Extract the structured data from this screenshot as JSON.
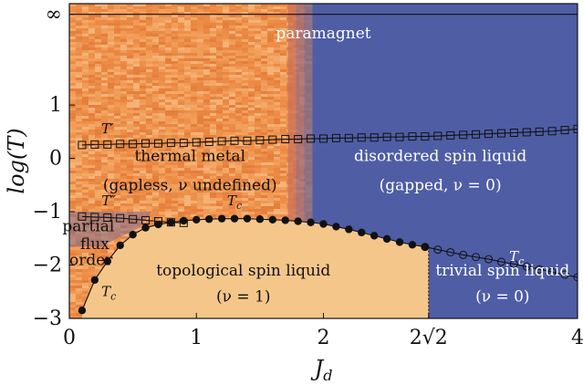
{
  "chart_data": {
    "type": "line",
    "xlabel": "J_d",
    "ylabel": "log(T)",
    "xlim": [
      0,
      4
    ],
    "ylim": [
      -3,
      2.9
    ],
    "x_ticks": [
      {
        "value": 0,
        "label": "0"
      },
      {
        "value": 1,
        "label": "1"
      },
      {
        "value": 2,
        "label": "2"
      },
      {
        "value": 2.828,
        "label": "2√2"
      },
      {
        "value": 4,
        "label": "4"
      }
    ],
    "y_ticks": [
      {
        "value": -3,
        "label": "−3"
      },
      {
        "value": -2,
        "label": "−2"
      },
      {
        "value": -1,
        "label": "−1"
      },
      {
        "value": 0,
        "label": "0"
      },
      {
        "value": 1,
        "label": "1"
      },
      {
        "value": 2.7,
        "label": "∞"
      }
    ],
    "colors": {
      "thermal_metal": "#ee8a45",
      "thermal_metal_light": "#f3b27a",
      "spin_liquid_blue": "#4f5da5",
      "topological": "#f5c68a",
      "curve": "#111111"
    },
    "infinity_line_y": 2.7,
    "regions": [
      {
        "name": "paramagnet",
        "label": "paramagnet",
        "x": 2.0,
        "y": 2.25
      },
      {
        "name": "thermal-metal",
        "label": "thermal metal",
        "x": 0.95,
        "y": -0.05
      },
      {
        "name": "thermal-metal-sub",
        "label": "(gapless, ν undefined)",
        "x": 0.95,
        "y": -0.6
      },
      {
        "name": "disordered-spin-liquid",
        "label": "disordered spin liquid",
        "x": 2.92,
        "y": -0.05
      },
      {
        "name": "disordered-spin-liquid-sub",
        "label": "(gapped, ν = 0)",
        "x": 2.92,
        "y": -0.6
      },
      {
        "name": "topological-spin-liquid",
        "label": "topological spin liquid",
        "x": 1.37,
        "y": -2.2
      },
      {
        "name": "topological-spin-liquid-sub",
        "label": "(ν = 1)",
        "x": 1.37,
        "y": -2.68
      },
      {
        "name": "trivial-spin-liquid",
        "label": "trivial spin liquid",
        "x": 3.41,
        "y": -2.2
      },
      {
        "name": "trivial-spin-liquid-sub",
        "label": "(ν = 0)",
        "x": 3.41,
        "y": -2.68
      },
      {
        "name": "partial-flux-order-1",
        "label": "partial",
        "x": 0.15,
        "y": -1.37
      },
      {
        "name": "partial-flux-order-2",
        "label": "flux",
        "x": 0.2,
        "y": -1.7
      },
      {
        "name": "partial-flux-order-3",
        "label": "order",
        "x": 0.17,
        "y": -2.0
      }
    ],
    "curve_labels": [
      {
        "name": "T-prime",
        "label": "T′",
        "x": 0.3,
        "y": 0.47
      },
      {
        "name": "T-double-prime",
        "label": "T″",
        "x": 0.31,
        "y": -0.88
      },
      {
        "name": "Tc-top",
        "label": "Tc",
        "x": 1.3,
        "y": -0.88
      },
      {
        "name": "Tc-left",
        "label": "Tc",
        "x": 0.31,
        "y": -2.58
      },
      {
        "name": "Tc-right",
        "label": "Tc",
        "x": 3.52,
        "y": -1.92
      }
    ],
    "series": [
      {
        "name": "T'",
        "marker": "square",
        "x": [
          0.1,
          0.2,
          0.3,
          0.4,
          0.5,
          0.6,
          0.7,
          0.8,
          0.9,
          1.0,
          1.1,
          1.2,
          1.3,
          1.4,
          1.5,
          1.6,
          1.7,
          1.8,
          1.9,
          2.0,
          2.1,
          2.2,
          2.3,
          2.4,
          2.5,
          2.6,
          2.7,
          2.8,
          2.9,
          3.0,
          3.1,
          3.2,
          3.3,
          3.4,
          3.5,
          3.6,
          3.7,
          3.8,
          3.9,
          4.0
        ],
        "y": [
          0.25,
          0.26,
          0.26,
          0.27,
          0.27,
          0.28,
          0.28,
          0.29,
          0.29,
          0.3,
          0.31,
          0.32,
          0.33,
          0.33,
          0.34,
          0.35,
          0.36,
          0.36,
          0.37,
          0.37,
          0.38,
          0.38,
          0.39,
          0.39,
          0.4,
          0.4,
          0.41,
          0.41,
          0.42,
          0.43,
          0.44,
          0.45,
          0.46,
          0.47,
          0.48,
          0.49,
          0.5,
          0.51,
          0.53,
          0.55
        ]
      },
      {
        "name": "T''",
        "marker": "square",
        "x": [
          0.1,
          0.2,
          0.3,
          0.4,
          0.5,
          0.6,
          0.7,
          0.8,
          0.9
        ],
        "y": [
          -1.09,
          -1.1,
          -1.11,
          -1.12,
          -1.14,
          -1.16,
          -1.18,
          -1.2,
          -1.21
        ]
      },
      {
        "name": "Tc",
        "marker": "filled-circle",
        "x": [
          0.1,
          0.2,
          0.3,
          0.4,
          0.5,
          0.6,
          0.7,
          0.8,
          0.9,
          1.0,
          1.1,
          1.2,
          1.3,
          1.4,
          1.5,
          1.6,
          1.7,
          1.8,
          1.9,
          2.0,
          2.1,
          2.2,
          2.3,
          2.4,
          2.5,
          2.6,
          2.7,
          2.8
        ],
        "y": [
          -2.85,
          -2.28,
          -1.93,
          -1.63,
          -1.43,
          -1.3,
          -1.24,
          -1.2,
          -1.17,
          -1.15,
          -1.14,
          -1.13,
          -1.13,
          -1.13,
          -1.14,
          -1.15,
          -1.16,
          -1.18,
          -1.2,
          -1.23,
          -1.28,
          -1.33,
          -1.39,
          -1.45,
          -1.51,
          -1.57,
          -1.62,
          -1.66
        ]
      },
      {
        "name": "Tc (trivial)",
        "marker": "open-circle",
        "x": [
          2.8,
          2.9,
          3.0,
          3.1,
          3.2,
          3.3,
          3.4,
          3.5,
          3.6,
          3.7,
          3.8,
          3.9,
          4.0
        ],
        "y": [
          -1.66,
          -1.71,
          -1.76,
          -1.81,
          -1.85,
          -1.89,
          -1.94,
          -1.98,
          -2.03,
          -2.08,
          -2.13,
          -2.18,
          -2.23
        ]
      }
    ]
  }
}
